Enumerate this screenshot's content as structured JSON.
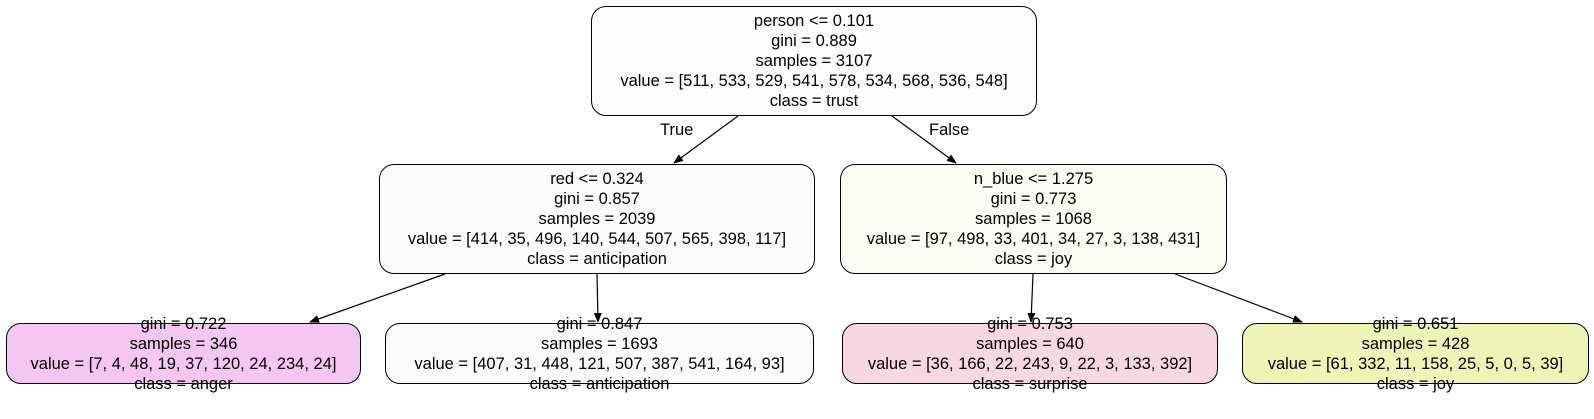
{
  "nodes": [
    {
      "id": "n0",
      "split": "person <= 0.101",
      "gini": "gini = 0.889",
      "samples": "samples = 3107",
      "value": "value = [511, 533, 529, 541, 578, 534, 568, 536, 548]",
      "class": "class = trust",
      "fill": "#fdfdfd"
    },
    {
      "id": "n1",
      "split": "red <= 0.324",
      "gini": "gini = 0.857",
      "samples": "samples = 2039",
      "value": "value = [414, 35, 496, 140, 544, 507, 565, 398, 117]",
      "class": "class = anticipation",
      "fill": "#fcfcfc"
    },
    {
      "id": "n2",
      "split": "n_blue <= 1.275",
      "gini": "gini = 0.773",
      "samples": "samples = 1068",
      "value": "value = [97, 498, 33, 401, 34, 27, 3, 138, 431]",
      "class": "class = joy",
      "fill": "#fbfcf3"
    },
    {
      "id": "n3",
      "gini": "gini = 0.722",
      "samples": "samples = 346",
      "value": "value = [7, 4, 48, 19, 37, 120, 24, 234, 24]",
      "class": "class = anger",
      "fill": "#f5c6f2"
    },
    {
      "id": "n4",
      "gini": "gini = 0.847",
      "samples": "samples = 1693",
      "value": "value = [407, 31, 448, 121, 507, 387, 541, 164, 93]",
      "class": "class = anticipation",
      "fill": "#fcfafd"
    },
    {
      "id": "n5",
      "gini": "gini = 0.753",
      "samples": "samples = 640",
      "value": "value = [36, 166, 22, 243, 9, 22, 3, 133, 392]",
      "class": "class = surprise",
      "fill": "#f8d8e0"
    },
    {
      "id": "n6",
      "gini": "gini = 0.651",
      "samples": "samples = 428",
      "value": "value = [61, 332, 11, 158, 25, 5, 0, 5, 39]",
      "class": "class = joy",
      "fill": "#eff4b6"
    }
  ],
  "edge_labels": {
    "true": "True",
    "false": "False"
  },
  "colors": {
    "stroke": "#000000",
    "background": "#ffffff"
  }
}
